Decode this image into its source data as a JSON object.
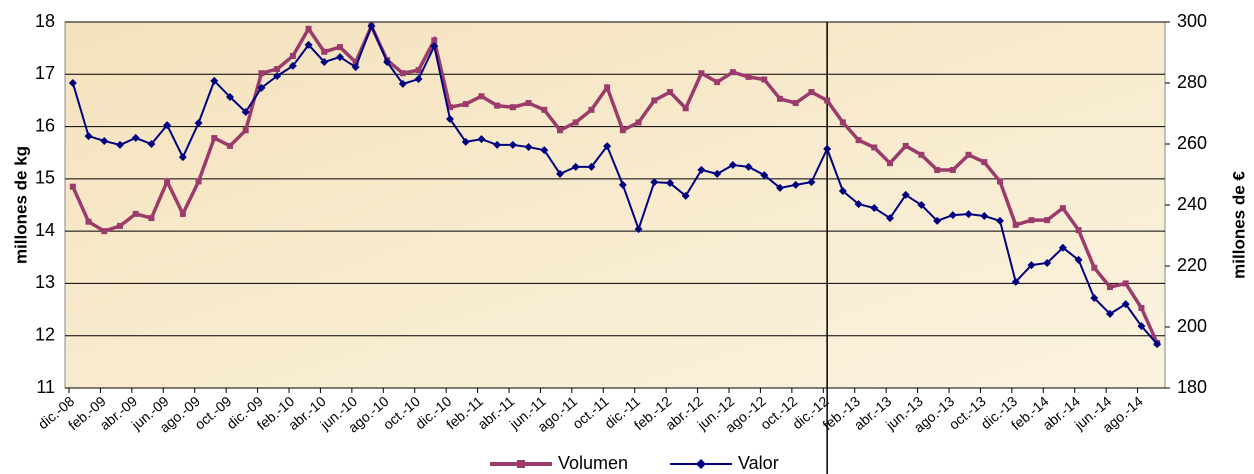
{
  "chart_data": {
    "type": "line",
    "y_label": "millones de kg",
    "y2_label": "millones de €",
    "categories": [
      "dic.-08",
      null,
      "feb.-09",
      null,
      "abr.-09",
      null,
      "jun.-09",
      null,
      "ago.-09",
      null,
      "oct.-09",
      null,
      "dic.-09",
      null,
      "feb.-10",
      null,
      "abr.-10",
      null,
      "jun.-10",
      null,
      "ago.-10",
      null,
      "oct.-10",
      null,
      "dic.-10",
      null,
      "feb.-11",
      null,
      "abr.-11",
      null,
      "jun.-11",
      null,
      "ago.-11",
      null,
      "oct.-11",
      null,
      "dic.-11",
      null,
      "feb.-12",
      null,
      "abr.-12",
      null,
      "jun.-12",
      null,
      "ago.-12",
      null,
      "oct.-12",
      null,
      "dic.-12",
      null,
      "feb.-13",
      null,
      "abr.-13",
      null,
      "jun.-13",
      null,
      "ago.-13",
      null,
      "oct.-13",
      null,
      "dic.-13",
      null,
      "feb.-14",
      null,
      "abr.-14",
      null,
      "jun.-14",
      null,
      "ago.-14",
      null
    ],
    "series": [
      {
        "name": "Volumen",
        "color": "#9b3b6c",
        "axis": "y",
        "values": [
          14.85,
          14.18,
          14.0,
          14.1,
          14.33,
          14.25,
          14.95,
          14.33,
          14.95,
          15.78,
          15.63,
          15.93,
          17.02,
          17.1,
          17.35,
          17.87,
          17.43,
          17.52,
          17.23,
          17.92,
          17.27,
          17.02,
          17.08,
          17.65,
          16.37,
          16.43,
          16.58,
          16.4,
          16.37,
          16.45,
          16.32,
          15.93,
          16.08,
          16.32,
          16.75,
          15.93,
          16.08,
          16.5,
          16.66,
          16.35,
          17.02,
          16.85,
          17.04,
          16.95,
          16.9,
          16.53,
          16.45,
          16.66,
          16.5,
          16.08,
          15.74,
          15.6,
          15.3,
          15.63,
          15.46,
          15.17,
          15.17,
          15.46,
          15.32,
          14.95,
          14.12,
          14.21,
          14.21,
          14.44,
          14.02,
          13.3,
          12.93,
          13.0,
          12.53,
          11.86
        ]
      },
      {
        "name": "Valor",
        "color": "#000080",
        "axis": "y2",
        "values": [
          280,
          262.6,
          261,
          259.7,
          262,
          260,
          266.2,
          255.7,
          266.9,
          280.7,
          275.4,
          270.5,
          278.4,
          282.3,
          285.6,
          292.5,
          286.9,
          288.5,
          285.2,
          298.7,
          286.9,
          279.7,
          281.3,
          292.1,
          268.2,
          260.7,
          261.6,
          259.7,
          259.7,
          259,
          258,
          250.2,
          252.5,
          252.5,
          259.3,
          246.6,
          232.1,
          247.5,
          247.2,
          243,
          251.5,
          250.2,
          253.1,
          252.5,
          249.8,
          245.6,
          246.6,
          247.5,
          258.4,
          244.6,
          240.3,
          239,
          235.7,
          243.3,
          240,
          234.8,
          236.7,
          237,
          236.4,
          234.8,
          214.8,
          220.3,
          221,
          226,
          222,
          209.5,
          204.3,
          207.5,
          200.3,
          194.4
        ]
      }
    ],
    "ylim": [
      11,
      18
    ],
    "yticks": [
      11,
      12,
      13,
      14,
      15,
      16,
      17,
      18
    ],
    "y2lim": [
      180,
      300
    ],
    "y2ticks": [
      180,
      200,
      220,
      240,
      260,
      280,
      300
    ],
    "grid": true,
    "legend": "bottom"
  }
}
